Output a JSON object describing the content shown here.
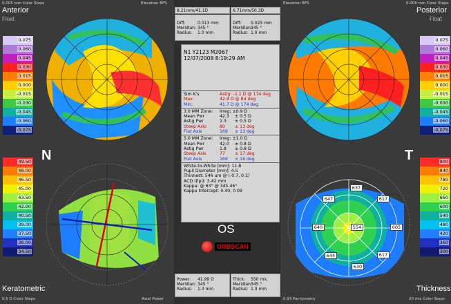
{
  "header": {
    "top_left_scale": "0.005 mm Color Steps",
    "top_center_left": "Elevation BFS",
    "top_center_right": "Elevation BFS",
    "top_right_scale": "0.005 mm Color Steps",
    "bfs_left": "8.21mm/41.1D",
    "bfs_right": "6.71mm/50.3D"
  },
  "quadrants": {
    "tl_title": "Anterior",
    "tl_sub": "Float",
    "tr_title": "Posterior",
    "tr_sub": "Float",
    "bl_title": "Keratometric",
    "bl_sub": "0.5 D Color Steps",
    "br_title": "Thickness",
    "br_sub": "20 mic Color Steps",
    "letter_left": "N",
    "letter_right": "T",
    "eye": "OS",
    "footer_axial": "Axial Power",
    "footer_pachy": "0.93 Pachymetry"
  },
  "top_panels": {
    "left": {
      "diff_label": "Diff:",
      "diff_val": "0.013 mm",
      "meridian_label": "Meridian:",
      "meridian_val": "345 °",
      "radius_label": "Radius:",
      "radius_val": "1.0 mm"
    },
    "right": {
      "diff_label": "Diff:",
      "diff_val": "0.025 mm",
      "meridian_label": "Meridian:",
      "meridian_val": "345 °",
      "radius_label": "Radius:",
      "radius_val": "1.0 mm"
    }
  },
  "bottom_panels": {
    "left": {
      "power_label": "Power:",
      "power_val": "41.99 D",
      "meridian_label": "Meridian:",
      "meridian_val": "345 °",
      "radius_label": "Radius:",
      "radius_val": "1.0 mm"
    },
    "right": {
      "thick_label": "Thick:",
      "thick_val": "550 mic",
      "meridian_label": "Meridian:",
      "meridian_val": "345 °",
      "radius_label": "Radius:",
      "radius_val": "1.0 mm"
    }
  },
  "patient": {
    "id": "N1 Y2123 M2067",
    "datetime": "12/07/2008 8:19:29 AM"
  },
  "sim_k": {
    "label": "Sim K's",
    "astig": "Astig: -1.1 D @ 174 deg",
    "max_label": "Max:",
    "max_val": "42.8 D @ 84 deg",
    "min_label": "Min:",
    "min_val": "41.7 D @ 174 deg"
  },
  "zone3": {
    "label": "3.0 MM Zone:",
    "irreg": "Irreg: ±0.9 D",
    "rows": [
      {
        "k": "Mean Pwr",
        "v1": "42.3",
        "v2": "± 0.5 D",
        "cls": ""
      },
      {
        "k": "Astig Pwr",
        "v1": "1.3",
        "v2": "± 0.5 D",
        "cls": ""
      },
      {
        "k": "Steep Axis",
        "v1": "80",
        "v2": "± 13 deg",
        "cls": "red"
      },
      {
        "k": "Flat Axis",
        "v1": "169",
        "v2": "± 13 deg",
        "cls": "blue"
      }
    ]
  },
  "zone5": {
    "label": "5.0 MM Zone:",
    "irreg": "Irreg: ±1.0 D",
    "rows": [
      {
        "k": "Mean Pwr",
        "v1": "42.0",
        "v2": "± 0.8 D",
        "cls": ""
      },
      {
        "k": "Astig Pwr",
        "v1": "1.8",
        "v2": "± 0.8 D",
        "cls": ""
      },
      {
        "k": "Steep Axis",
        "v1": "77",
        "v2": "± 17 deg",
        "cls": "red"
      },
      {
        "k": "Flat Axis",
        "v1": "169",
        "v2": "± 16 deg",
        "cls": "blue"
      }
    ]
  },
  "misc": {
    "wtw": "White-to-White [mm]: 11.8",
    "pupil": "Pupil Diameter [mm]: 4.5",
    "thinnest": "Thinnest: 546 um @ (-0.7, 0.1)",
    "acd": "ACD (Epi): 3.42 mm",
    "kappa": "Kappa: @ 63° @ 345.46°",
    "kappa_int": "Kappa Intercept: 0.40, 0.09"
  },
  "brand": "ORBSCAN",
  "scales": {
    "left_top": [
      "0.075",
      "0.060",
      "0.045",
      "0.030",
      "0.015",
      "0.000",
      "-0.015",
      "-0.030",
      "-0.045",
      "-0.060",
      "-0.075"
    ],
    "right_top": [
      "0.075",
      "0.060",
      "0.045",
      "0.030",
      "0.015",
      "0.000",
      "-0.015",
      "-0.030",
      "-0.045",
      "-0.060",
      "-0.075"
    ],
    "left_bottom": [
      "49.50",
      "48.00",
      "46.50",
      "45.00",
      "43.50",
      "42.00",
      "40.50",
      "39.00",
      "37.50",
      "36.00",
      "34.50"
    ],
    "right_bottom": [
      "900",
      "840",
      "780",
      "720",
      "660",
      "600",
      "540",
      "480",
      "420",
      "360",
      "300"
    ]
  },
  "pachy_values": [
    "637",
    "647",
    "617",
    "640",
    "554",
    "605",
    "644",
    "617",
    "630"
  ],
  "colors": {
    "top_scale": [
      "#e8e0ff",
      "#c58be6",
      "#a04fbf",
      "#d020d0",
      "#ff2020",
      "#ff7a00",
      "#ffb000",
      "#ffe000",
      "#d6ff30",
      "#8fe040",
      "#20c040",
      "#10b0a0",
      "#00b8e0",
      "#1e7cff",
      "#2030c0",
      "#10207a",
      "#7a4a3a",
      "#a07060",
      "#c4a090",
      "#ffffff",
      "#c0c0c0",
      "#909090"
    ],
    "bottom_scale": [
      "#ff2a2a",
      "#ff7a00",
      "#ffc000",
      "#f0f000",
      "#9ef040",
      "#30d050",
      "#10b0a0",
      "#00c0f0",
      "#2080ff",
      "#2030c0",
      "#101a70"
    ]
  }
}
